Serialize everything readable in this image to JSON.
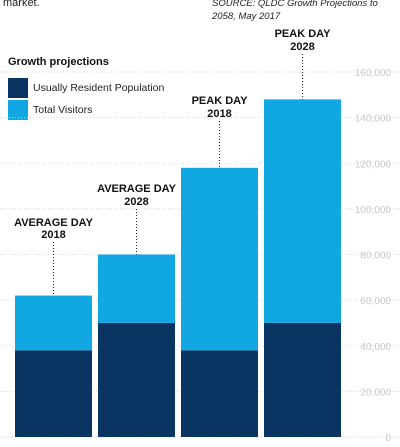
{
  "intro_text": "market.",
  "source_text": "SOURCE: QLDC Growth Projections to 2058, May 2017",
  "legend": {
    "title": "Growth projections",
    "items": [
      {
        "label": "Usually Resident Population",
        "color": "#0a3462"
      },
      {
        "label": "Total Visitors",
        "color": "#11a7e3"
      }
    ]
  },
  "chart_data": {
    "type": "bar",
    "stacked": true,
    "categories": [
      "AVERAGE DAY 2018",
      "AVERAGE DAY 2028",
      "PEAK DAY 2018",
      "PEAK DAY 2028"
    ],
    "category_lines": [
      [
        "AVERAGE DAY",
        "2018"
      ],
      [
        "AVERAGE DAY",
        "2028"
      ],
      [
        "PEAK DAY",
        "2018"
      ],
      [
        "PEAK DAY",
        "2028"
      ]
    ],
    "series": [
      {
        "name": "Usually Resident Population",
        "values": [
          38000,
          50000,
          38000,
          50000
        ],
        "color": "#0a3462"
      },
      {
        "name": "Total Visitors",
        "values": [
          24000,
          30000,
          80000,
          98000
        ],
        "color": "#11a7e3"
      }
    ],
    "ylim": [
      0,
      160000
    ],
    "yticks": [
      0,
      20000,
      40000,
      60000,
      80000,
      100000,
      120000,
      140000,
      160000
    ],
    "ytick_labels": [
      "0",
      "20,000",
      "40,000",
      "60,000",
      "80,000",
      "100,000",
      "120,000",
      "140,000",
      "160,000"
    ],
    "grid": true,
    "axis_side": "right",
    "grid_color": "#d6d6d6"
  }
}
